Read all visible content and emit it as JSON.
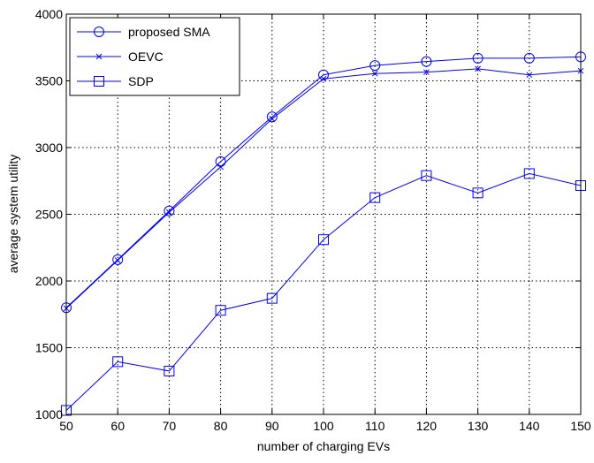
{
  "chart_data": {
    "type": "line",
    "xlabel": "number of charging EVs",
    "ylabel": "average system utility",
    "xlim": [
      50,
      150
    ],
    "ylim": [
      1000,
      4000
    ],
    "xticks": [
      50,
      60,
      70,
      80,
      90,
      100,
      110,
      120,
      130,
      140,
      150
    ],
    "yticks": [
      1000,
      1500,
      2000,
      2500,
      3000,
      3500,
      4000
    ],
    "grid": true,
    "legend_position": "top-left",
    "color": "#0000ff",
    "x": [
      50,
      60,
      70,
      80,
      90,
      100,
      110,
      120,
      130,
      140,
      150
    ],
    "series": [
      {
        "name": "proposed SMA",
        "marker": "circle",
        "values": [
          1800,
          2160,
          2525,
          2895,
          3230,
          3545,
          3615,
          3645,
          3670,
          3670,
          3680
        ]
      },
      {
        "name": "OEVC",
        "marker": "x",
        "values": [
          1795,
          2155,
          2515,
          2855,
          3215,
          3515,
          3555,
          3565,
          3590,
          3545,
          3575
        ]
      },
      {
        "name": "SDP",
        "marker": "square",
        "values": [
          1030,
          1395,
          1325,
          1780,
          1870,
          2310,
          2625,
          2790,
          2660,
          2805,
          2715
        ]
      }
    ]
  }
}
